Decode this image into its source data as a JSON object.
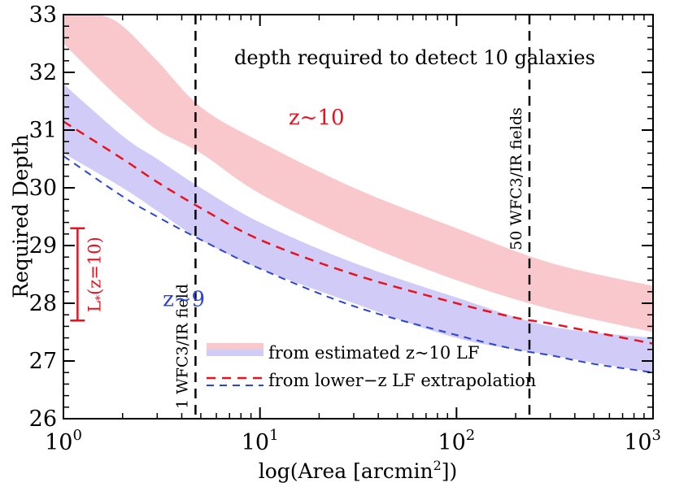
{
  "chart_data": {
    "type": "area",
    "title": "depth required to detect 10 galaxies",
    "xlabel": "log(Area [arcmin",
    "xlabel_sup": "2",
    "xlabel_end": "])",
    "ylabel": "Required Depth",
    "xscale": "log",
    "xlim": [
      1,
      1000
    ],
    "ylim": [
      26,
      33
    ],
    "xticks": [
      {
        "value": 1,
        "base": "10",
        "exp": "0"
      },
      {
        "value": 10,
        "base": "10",
        "exp": "1"
      },
      {
        "value": 100,
        "base": "10",
        "exp": "2"
      },
      {
        "value": 1000,
        "base": "10",
        "exp": "3"
      }
    ],
    "yticks": [
      26,
      27,
      28,
      29,
      30,
      31,
      32,
      33
    ],
    "bands": [
      {
        "name": "z~10",
        "color": "#f9c8cd",
        "x": [
          1,
          1.5,
          2,
          3,
          5,
          10,
          30,
          100,
          300,
          1000
        ],
        "upper": [
          33.0,
          33.0,
          32.8,
          32.2,
          31.4,
          30.8,
          30.0,
          29.3,
          28.7,
          28.3
        ],
        "lower": [
          32.5,
          31.9,
          31.5,
          31.0,
          30.6,
          29.9,
          29.1,
          28.4,
          27.9,
          27.5
        ]
      },
      {
        "name": "z~9",
        "color": "#d0ccf7",
        "x": [
          1,
          2,
          3,
          5,
          10,
          30,
          100,
          300,
          1000
        ],
        "upper": [
          31.8,
          30.9,
          30.5,
          30.0,
          29.4,
          28.7,
          28.1,
          27.6,
          27.4
        ],
        "lower": [
          30.6,
          30.0,
          29.6,
          29.1,
          28.6,
          28.0,
          27.4,
          27.1,
          26.8
        ]
      }
    ],
    "series": [
      {
        "name": "z~10 lower-z LF extrapolation",
        "color": "#e8121f",
        "dash": "dashed",
        "x": [
          1,
          2,
          3,
          5,
          10,
          30,
          100,
          200,
          300,
          500,
          1000
        ],
        "y": [
          31.15,
          30.5,
          30.1,
          29.65,
          29.1,
          28.5,
          28.0,
          27.75,
          27.65,
          27.5,
          27.3
        ]
      },
      {
        "name": "z~9 lower-z LF extrapolation",
        "color": "#2b44d8",
        "dash": "dashed",
        "x": [
          1,
          2,
          3,
          5,
          10,
          30,
          100,
          200,
          300,
          500,
          1000
        ],
        "y": [
          30.55,
          29.85,
          29.5,
          29.1,
          28.6,
          27.95,
          27.45,
          27.2,
          27.1,
          26.95,
          26.8
        ]
      }
    ],
    "vlines": [
      {
        "x": 4.7,
        "label": "1 WFC3/IR field"
      },
      {
        "x": 235,
        "label": "50 WFC3/IR fields"
      }
    ],
    "annotations": {
      "z10_label": {
        "text": "z~10",
        "color": "#e8121f",
        "x": 14,
        "y": 31.1
      },
      "z9_label": {
        "text": "z~9",
        "color": "#2b44d8",
        "x": 3.2,
        "y": 27.95
      }
    },
    "lstar_bar": {
      "label_main": "L",
      "label_sub": "*",
      "label_tail": "(z=10)",
      "color": "#e8121f",
      "x": 1.18,
      "ylow": 27.7,
      "yhigh": 29.3
    },
    "legend": {
      "placement": "bottom-center",
      "band_label": "from estimated z~10 LF",
      "line_label": "from lower−z LF extrapolation",
      "band_colors": [
        "#f9c8cd",
        "#d0ccf7"
      ],
      "line_colors": [
        "#e8121f",
        "#2b44d8"
      ]
    }
  }
}
